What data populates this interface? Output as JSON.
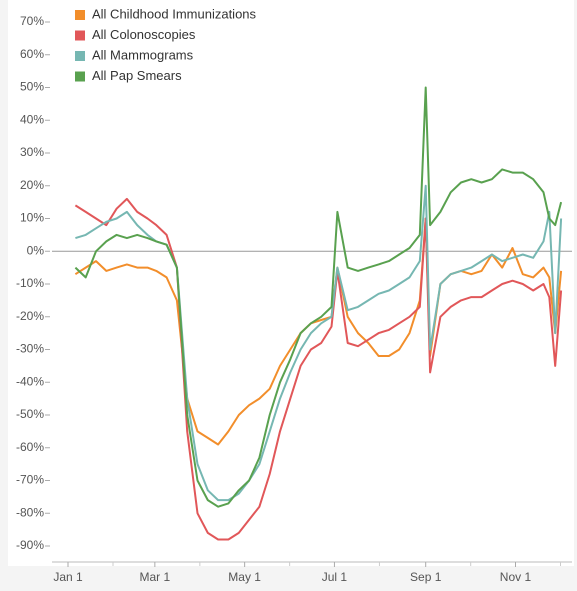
{
  "chart_data": {
    "type": "line",
    "x": [
      "Jan 6",
      "Jan 13",
      "Jan 20",
      "Jan 27",
      "Feb 3",
      "Feb 10",
      "Feb 17",
      "Feb 24",
      "Mar 2",
      "Mar 9",
      "Mar 16",
      "Mar 23",
      "Mar 30",
      "Apr 6",
      "Apr 13",
      "Apr 20",
      "Apr 27",
      "May 4",
      "May 11",
      "May 18",
      "May 25",
      "Jun 1",
      "Jun 8",
      "Jun 15",
      "Jun 22",
      "Jun 29",
      "Jul 3",
      "Jul 10",
      "Jul 17",
      "Jul 24",
      "Jul 31",
      "Aug 7",
      "Aug 14",
      "Aug 21",
      "Aug 28",
      "Sep 1",
      "Sep 4",
      "Sep 11",
      "Sep 18",
      "Sep 25",
      "Oct 2",
      "Oct 9",
      "Oct 16",
      "Oct 23",
      "Oct 30",
      "Nov 6",
      "Nov 13",
      "Nov 20",
      "Nov 24",
      "Nov 28",
      "Dec 2"
    ],
    "series": [
      {
        "name": "All Childhood Immunizations",
        "color": "#f28e2b",
        "values": [
          -7,
          -5,
          -3,
          -6,
          -5,
          -4,
          -5,
          -5,
          -6,
          -8,
          -15,
          -45,
          -55,
          -57,
          -59,
          -55,
          -50,
          -47,
          -45,
          -42,
          -35,
          -30,
          -25,
          -22,
          -21,
          -20,
          -5,
          -20,
          -25,
          -28,
          -32,
          -32,
          -30,
          -25,
          -15,
          10,
          -32,
          -10,
          -7,
          -6,
          -7,
          -6,
          -1,
          -5,
          1,
          -7,
          -8,
          -5,
          -8,
          -25,
          -6
        ]
      },
      {
        "name": "All Colonoscopies",
        "color": "#e15759",
        "values": [
          14,
          12,
          10,
          8,
          13,
          16,
          12,
          10,
          8,
          5,
          -5,
          -55,
          -80,
          -86,
          -88,
          -88,
          -86,
          -82,
          -78,
          -68,
          -55,
          -45,
          -35,
          -30,
          -28,
          -23,
          -6,
          -28,
          -29,
          -27,
          -25,
          -24,
          -22,
          -20,
          -17,
          10,
          -37,
          -20,
          -17,
          -15,
          -14,
          -14,
          -12,
          -10,
          -9,
          -10,
          -12,
          -10,
          -14,
          -35,
          -12
        ]
      },
      {
        "name": "All Mammograms",
        "color": "#76b7b2",
        "values": [
          4,
          5,
          7,
          9,
          10,
          12,
          8,
          5,
          3,
          2,
          -5,
          -45,
          -65,
          -73,
          -76,
          -76,
          -74,
          -70,
          -65,
          -55,
          -45,
          -37,
          -30,
          -25,
          -22,
          -20,
          -5,
          -18,
          -17,
          -15,
          -13,
          -12,
          -10,
          -8,
          -3,
          20,
          -30,
          -10,
          -7,
          -6,
          -5,
          -3,
          -1,
          -3,
          -2,
          -1,
          -2,
          3,
          12,
          -25,
          10
        ]
      },
      {
        "name": "All Pap Smears",
        "color": "#59a14f",
        "values": [
          -5,
          -8,
          0,
          3,
          5,
          4,
          5,
          4,
          3,
          2,
          -5,
          -50,
          -70,
          -76,
          -78,
          -77,
          -73,
          -70,
          -63,
          -50,
          -40,
          -33,
          -25,
          -22,
          -20,
          -17,
          12,
          -5,
          -6,
          -5,
          -4,
          -3,
          -1,
          1,
          5,
          50,
          8,
          12,
          18,
          21,
          22,
          21,
          22,
          25,
          24,
          24,
          22,
          18,
          10,
          8,
          15
        ]
      }
    ],
    "ylim": [
      -95,
      73
    ],
    "yticks": [
      {
        "value": 70,
        "label": "70%"
      },
      {
        "value": 60,
        "label": "60%"
      },
      {
        "value": 50,
        "label": "50%"
      },
      {
        "value": 40,
        "label": "40%"
      },
      {
        "value": 30,
        "label": "30%"
      },
      {
        "value": 20,
        "label": "20%"
      },
      {
        "value": 10,
        "label": "10%"
      },
      {
        "value": 0,
        "label": "0%"
      },
      {
        "value": -10,
        "label": "-10%"
      },
      {
        "value": -20,
        "label": "-20%"
      },
      {
        "value": -30,
        "label": "-30%"
      },
      {
        "value": -40,
        "label": "-40%"
      },
      {
        "value": -50,
        "label": "-50%"
      },
      {
        "value": -60,
        "label": "-60%"
      },
      {
        "value": -70,
        "label": "-70%"
      },
      {
        "value": -80,
        "label": "-80%"
      },
      {
        "value": -90,
        "label": "-90%"
      }
    ],
    "xticks": [
      "Jan 1",
      "Mar 1",
      "May 1",
      "Jul 1",
      "Sep 1",
      "Nov 1"
    ],
    "legend": "top-left"
  }
}
